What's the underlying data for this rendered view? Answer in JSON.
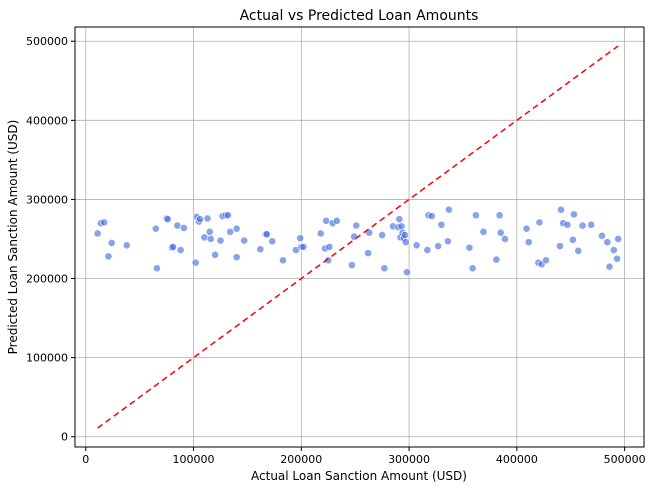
{
  "chart_data": {
    "type": "scatter",
    "title": "Actual vs Predicted Loan Amounts",
    "xlabel": "Actual Loan Sanction Amount (USD)",
    "ylabel": "Predicted Loan Sanction Amount (USD)",
    "xlim": [
      -10000,
      518000
    ],
    "ylim": [
      -13000,
      518000
    ],
    "xticks": [
      0,
      100000,
      200000,
      300000,
      400000,
      500000
    ],
    "xtick_labels": [
      "0",
      "100000",
      "200000",
      "300000",
      "400000",
      "500000"
    ],
    "yticks": [
      0,
      100000,
      200000,
      300000,
      400000,
      500000
    ],
    "ytick_labels": [
      "0",
      "100000",
      "200000",
      "300000",
      "400000",
      "500000"
    ],
    "grid": true,
    "colors": {
      "points": "#4169e1",
      "reference_line": "#ff0000"
    },
    "reference_line": {
      "style": "dashed",
      "x": [
        11000,
        494000
      ],
      "y": [
        11000,
        494000
      ]
    },
    "series": [
      {
        "x": [
          11000,
          14000,
          17000,
          21000,
          24000,
          38000,
          65000,
          66000,
          75000,
          76000,
          80000,
          81000,
          85000,
          88000,
          91000,
          102000,
          103000,
          105000,
          106000,
          110000,
          113000,
          115000,
          116000,
          120000,
          125000,
          127000,
          130000,
          132000,
          134000,
          140000,
          140000,
          147000,
          162000,
          167000,
          168000,
          173000,
          183000,
          195000,
          199000,
          200000,
          202000,
          218000,
          222000,
          223000,
          225000,
          226000,
          229000,
          233000,
          247000,
          249000,
          251000,
          262000,
          263000,
          275000,
          277000,
          285000,
          290000,
          291000,
          292000,
          293000,
          294000,
          295000,
          296000,
          297000,
          298000,
          307000,
          317000,
          318000,
          321000,
          327000,
          330000,
          336000,
          337000,
          356000,
          359000,
          362000,
          369000,
          381000,
          384000,
          385000,
          389000,
          409000,
          411000,
          420000,
          421000,
          423000,
          427000,
          440000,
          441000,
          443000,
          447000,
          452000,
          453000,
          457000,
          461000,
          469000,
          479000,
          484000,
          486000,
          490000,
          493000,
          494000
        ],
        "y": [
          257000,
          270000,
          271000,
          228000,
          245000,
          242000,
          263000,
          213000,
          276000,
          275000,
          239000,
          240000,
          267000,
          236000,
          264000,
          220000,
          278000,
          272000,
          275000,
          252000,
          276000,
          259000,
          250000,
          230000,
          248000,
          279000,
          280000,
          280000,
          259000,
          263000,
          227000,
          248000,
          237000,
          256000,
          256000,
          247000,
          223000,
          236000,
          251000,
          240000,
          240000,
          257000,
          238000,
          273000,
          223000,
          240000,
          270000,
          273000,
          217000,
          253000,
          267000,
          232000,
          258000,
          255000,
          213000,
          266000,
          265000,
          275000,
          252000,
          266000,
          258000,
          251000,
          255000,
          246000,
          208000,
          242000,
          236000,
          280000,
          279000,
          241000,
          268000,
          247000,
          287000,
          239000,
          213000,
          280000,
          259000,
          224000,
          280000,
          258000,
          250000,
          263000,
          246000,
          220000,
          271000,
          218000,
          223000,
          241000,
          287000,
          270000,
          268000,
          249000,
          281000,
          235000,
          267000,
          268000,
          254000,
          246000,
          215000,
          236000,
          225000,
          250000
        ]
      }
    ]
  }
}
